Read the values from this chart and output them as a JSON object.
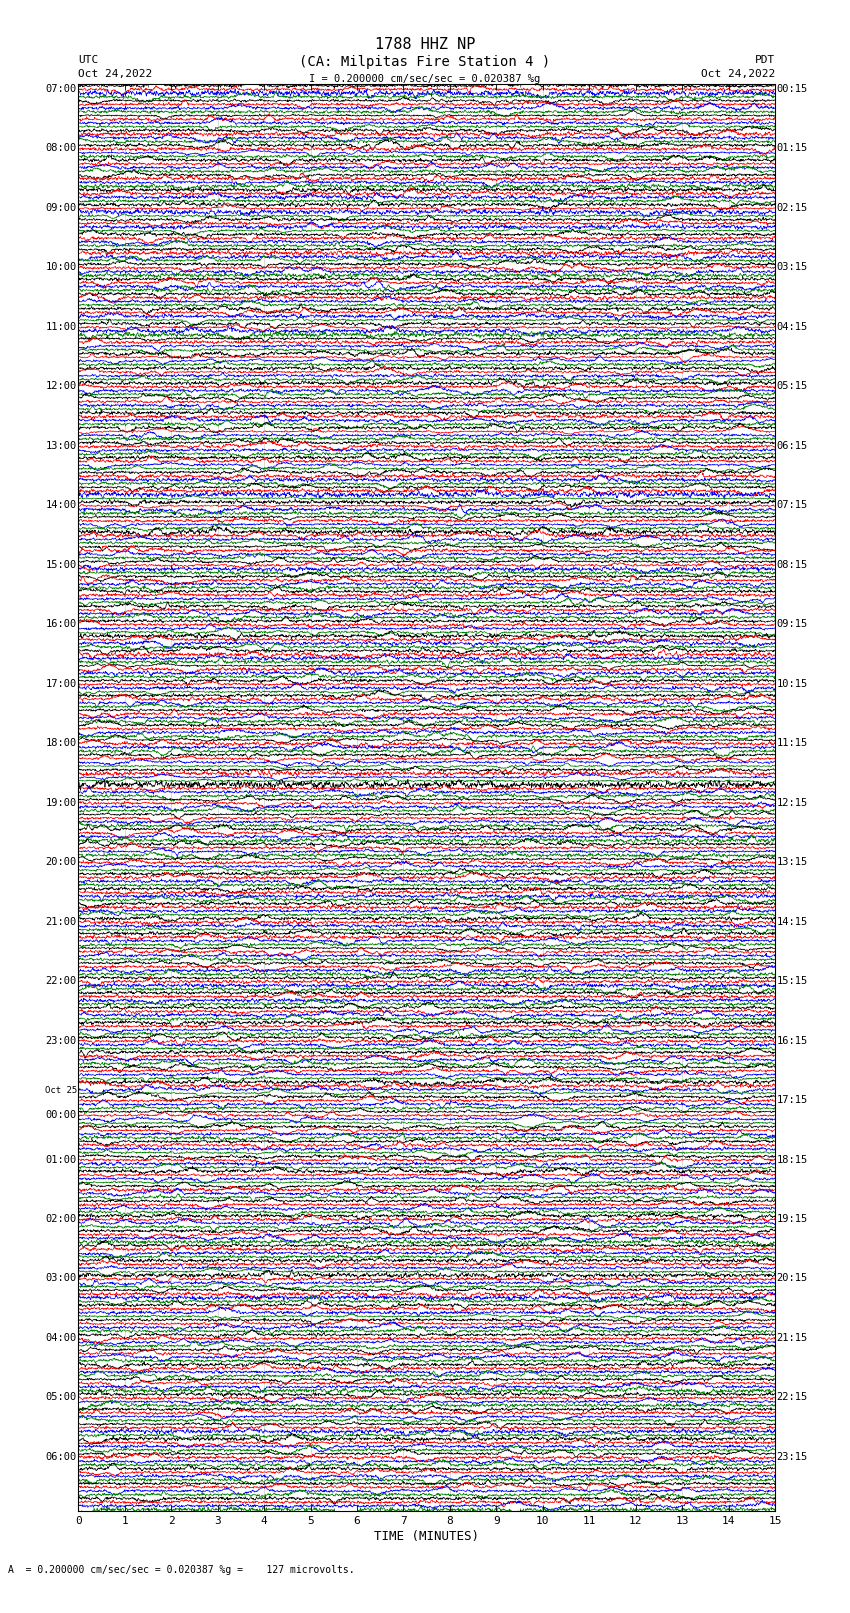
{
  "title_line1": "1788 HHZ NP",
  "title_line2": "(CA: Milpitas Fire Station 4 )",
  "utc_label": "UTC",
  "utc_date": "Oct 24,2022",
  "pdt_label": "PDT",
  "pdt_date": "Oct 24,2022",
  "scale_text": "= 0.200000 cm/sec/sec = 0.020387 %g =    127 microvolts.",
  "scale_bar_text": "= 0.200000 cm/sec/sec = 0.020387 %g",
  "xlabel": "TIME (MINUTES)",
  "xmin": 0,
  "xmax": 15,
  "xticks": [
    0,
    1,
    2,
    3,
    4,
    5,
    6,
    7,
    8,
    9,
    10,
    11,
    12,
    13,
    14,
    15
  ],
  "background_color": "#ffffff",
  "trace_colors": [
    "black",
    "red",
    "blue",
    "green"
  ],
  "left_times_utc": [
    "07:00",
    "",
    "",
    "",
    "08:00",
    "",
    "",
    "",
    "09:00",
    "",
    "",
    "",
    "10:00",
    "",
    "",
    "",
    "11:00",
    "",
    "",
    "",
    "12:00",
    "",
    "",
    "",
    "13:00",
    "",
    "",
    "",
    "14:00",
    "",
    "",
    "",
    "15:00",
    "",
    "",
    "",
    "16:00",
    "",
    "",
    "",
    "17:00",
    "",
    "",
    "",
    "18:00",
    "",
    "",
    "",
    "19:00",
    "",
    "",
    "",
    "20:00",
    "",
    "",
    "",
    "21:00",
    "",
    "",
    "",
    "22:00",
    "",
    "",
    "",
    "23:00",
    "",
    "",
    "",
    "Oct 25",
    "00:00",
    "",
    "",
    "01:00",
    "",
    "",
    "",
    "02:00",
    "",
    "",
    "",
    "03:00",
    "",
    "",
    "",
    "04:00",
    "",
    "",
    "",
    "05:00",
    "",
    "",
    "",
    "06:00",
    "",
    "",
    ""
  ],
  "right_times_pdt": [
    "00:15",
    "",
    "",
    "",
    "01:15",
    "",
    "",
    "",
    "02:15",
    "",
    "",
    "",
    "03:15",
    "",
    "",
    "",
    "04:15",
    "",
    "",
    "",
    "05:15",
    "",
    "",
    "",
    "06:15",
    "",
    "",
    "",
    "07:15",
    "",
    "",
    "",
    "08:15",
    "",
    "",
    "",
    "09:15",
    "",
    "",
    "",
    "10:15",
    "",
    "",
    "",
    "11:15",
    "",
    "",
    "",
    "12:15",
    "",
    "",
    "",
    "13:15",
    "",
    "",
    "",
    "14:15",
    "",
    "",
    "",
    "15:15",
    "",
    "",
    "",
    "16:15",
    "",
    "",
    "",
    "17:15",
    "",
    "",
    "",
    "18:15",
    "",
    "",
    "",
    "19:15",
    "",
    "",
    "",
    "20:15",
    "",
    "",
    "",
    "21:15",
    "",
    "",
    "",
    "22:15",
    "",
    "",
    "",
    "23:15",
    "",
    "",
    ""
  ],
  "n_rows": 96,
  "n_traces_per_row": 4,
  "seed": 42
}
